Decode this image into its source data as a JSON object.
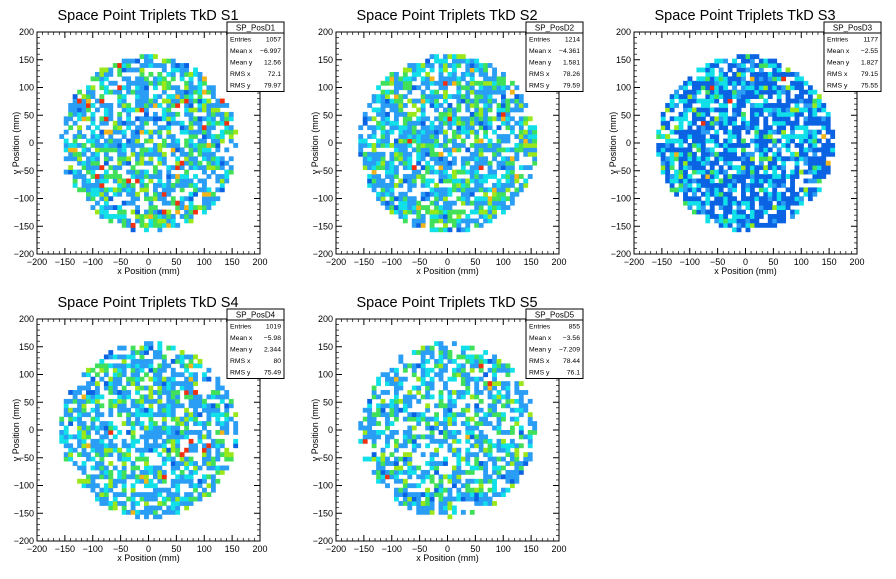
{
  "colors": {
    "frame": "#000000",
    "background": "#ffffff",
    "palette": [
      "#0b63e3",
      "#2a9df4",
      "#11e0e8",
      "#41e05a",
      "#9be81a",
      "#f2b41b",
      "#f03010"
    ]
  },
  "chart_data": [
    {
      "type": "heatmap",
      "title": "Space Point Triplets TkD S1",
      "xlabel": "x Position (mm)",
      "ylabel": "y Position (mm)",
      "xlim": [
        -200,
        200
      ],
      "ylim": [
        -200,
        200
      ],
      "xticks": [
        "−200",
        "−150",
        "−100",
        "−50",
        "0",
        "50",
        "100",
        "150",
        "200"
      ],
      "yticks": [
        "−200",
        "−150",
        "−100",
        "−50",
        "0",
        "50",
        "100",
        "150",
        "200"
      ],
      "stats": {
        "name": "SP_PosD1",
        "rows": [
          {
            "label": "Entries",
            "value": "1057"
          },
          {
            "label": "Mean x",
            "value": "−6.997"
          },
          {
            "label": "Mean y",
            "value": "12.56"
          },
          {
            "label": "RMS x",
            "value": "72.1"
          },
          {
            "label": "RMS y",
            "value": "79.97"
          }
        ]
      },
      "entries": 1057,
      "mean_x": -6.997,
      "mean_y": 12.56,
      "rms_x": 72.1,
      "rms_y": 79.97,
      "bin_width": 8,
      "footprint_radius": 158,
      "fill_fraction": 0.68,
      "palette_bias": 1.0,
      "hotspot_fraction": 0.02
    },
    {
      "type": "heatmap",
      "title": "Space Point Triplets TkD S2",
      "xlabel": "x Position (mm)",
      "ylabel": "y Position (mm)",
      "xlim": [
        -200,
        200
      ],
      "ylim": [
        -200,
        200
      ],
      "xticks": [
        "−200",
        "−150",
        "−100",
        "−50",
        "0",
        "50",
        "100",
        "150",
        "200"
      ],
      "yticks": [
        "−200",
        "−150",
        "−100",
        "−50",
        "0",
        "50",
        "100",
        "150",
        "200"
      ],
      "stats": {
        "name": "SP_PosD2",
        "rows": [
          {
            "label": "Entries",
            "value": "1214"
          },
          {
            "label": "Mean x",
            "value": "−4.361"
          },
          {
            "label": "Mean y",
            "value": "1.581"
          },
          {
            "label": "RMS x",
            "value": "78.26"
          },
          {
            "label": "RMS y",
            "value": "79.59"
          }
        ]
      },
      "entries": 1214,
      "mean_x": -4.361,
      "mean_y": 1.581,
      "rms_x": 78.26,
      "rms_y": 79.59,
      "bin_width": 8,
      "footprint_radius": 160,
      "fill_fraction": 0.75,
      "palette_bias": 1.0,
      "hotspot_fraction": 0.015
    },
    {
      "type": "heatmap",
      "title": "Space Point Triplets TkD S3",
      "xlabel": "x Position (mm)",
      "ylabel": "y Position (mm)",
      "xlim": [
        -200,
        200
      ],
      "ylim": [
        -200,
        200
      ],
      "xticks": [
        "−200",
        "−150",
        "−100",
        "−50",
        "0",
        "50",
        "100",
        "150",
        "200"
      ],
      "yticks": [
        "−200",
        "−150",
        "−100",
        "−50",
        "0",
        "50",
        "100",
        "150",
        "200"
      ],
      "stats": {
        "name": "SP_PosD3",
        "rows": [
          {
            "label": "Entries",
            "value": "1177"
          },
          {
            "label": "Mean x",
            "value": "−2.55"
          },
          {
            "label": "Mean y",
            "value": "1.827"
          },
          {
            "label": "RMS x",
            "value": "79.15"
          },
          {
            "label": "RMS y",
            "value": "75.55"
          }
        ]
      },
      "entries": 1177,
      "mean_x": -2.55,
      "mean_y": 1.827,
      "rms_x": 79.15,
      "rms_y": 75.55,
      "bin_width": 8,
      "footprint_radius": 158,
      "fill_fraction": 0.78,
      "palette_bias": 0.45,
      "hotspot_fraction": 0.004
    },
    {
      "type": "heatmap",
      "title": "Space Point Triplets TkD S4",
      "xlabel": "x Position (mm)",
      "ylabel": "y Position (mm)",
      "xlim": [
        -200,
        200
      ],
      "ylim": [
        -200,
        200
      ],
      "xticks": [
        "−200",
        "−150",
        "−100",
        "−50",
        "0",
        "50",
        "100",
        "150",
        "200"
      ],
      "yticks": [
        "−200",
        "−150",
        "−100",
        "−50",
        "0",
        "50",
        "100",
        "150",
        "200"
      ],
      "stats": {
        "name": "SP_PosD4",
        "rows": [
          {
            "label": "Entries",
            "value": "1019"
          },
          {
            "label": "Mean x",
            "value": "−5.98"
          },
          {
            "label": "Mean y",
            "value": "2.344"
          },
          {
            "label": "RMS x",
            "value": "80"
          },
          {
            "label": "RMS y",
            "value": "75.49"
          }
        ]
      },
      "entries": 1019,
      "mean_x": -5.98,
      "mean_y": 2.344,
      "rms_x": 80,
      "rms_y": 75.49,
      "bin_width": 8,
      "footprint_radius": 158,
      "fill_fraction": 0.66,
      "palette_bias": 0.9,
      "hotspot_fraction": 0.008
    },
    {
      "type": "heatmap",
      "title": "Space Point Triplets TkD S5",
      "xlabel": "x Position (mm)",
      "ylabel": "y Position (mm)",
      "xlim": [
        -200,
        200
      ],
      "ylim": [
        -200,
        200
      ],
      "xticks": [
        "−200",
        "−150",
        "−100",
        "−50",
        "0",
        "50",
        "100",
        "150",
        "200"
      ],
      "yticks": [
        "−200",
        "−150",
        "−100",
        "−50",
        "0",
        "50",
        "100",
        "150",
        "200"
      ],
      "stats": {
        "name": "SP_PosD5",
        "rows": [
          {
            "label": "Entries",
            "value": "855"
          },
          {
            "label": "Mean x",
            "value": "−3.56"
          },
          {
            "label": "Mean y",
            "value": "−7.209"
          },
          {
            "label": "RMS x",
            "value": "78.44"
          },
          {
            "label": "RMS y",
            "value": "76.1"
          }
        ]
      },
      "entries": 855,
      "mean_x": -3.56,
      "mean_y": -7.209,
      "rms_x": 78.44,
      "rms_y": 76.1,
      "bin_width": 8,
      "footprint_radius": 158,
      "fill_fraction": 0.58,
      "palette_bias": 0.9,
      "hotspot_fraction": 0.006
    }
  ]
}
